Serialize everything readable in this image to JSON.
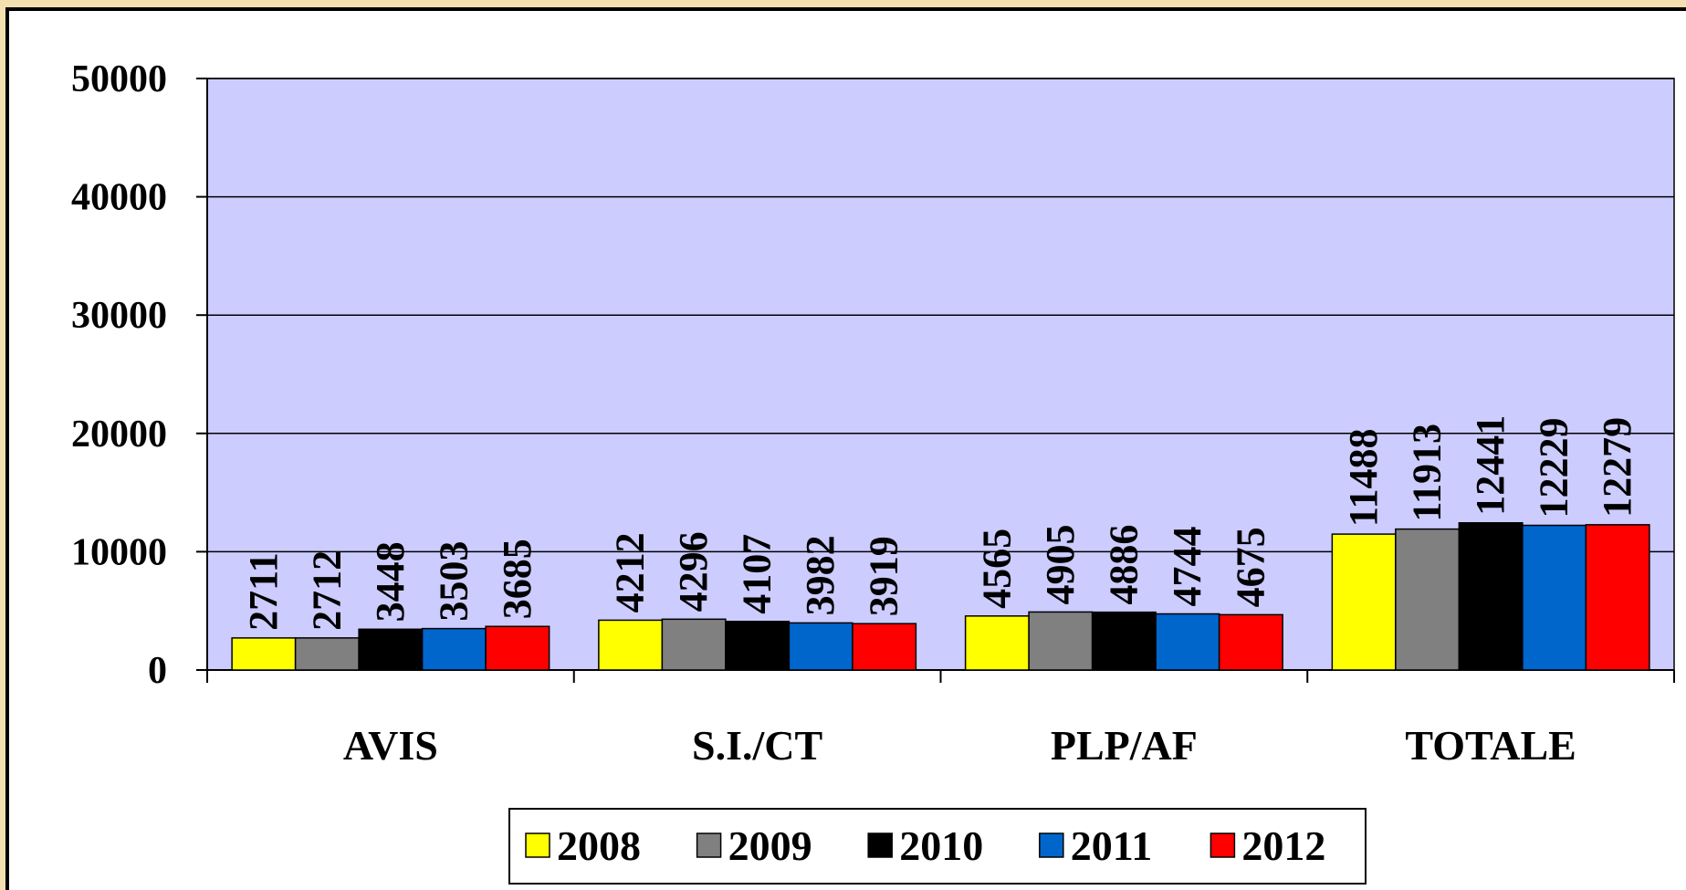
{
  "chart_data": {
    "type": "bar",
    "categories": [
      "AVIS",
      "S.I./CT",
      "PLP/AF",
      "TOTALE"
    ],
    "series": [
      {
        "name": "2008",
        "color": "#ffff00",
        "values": [
          2711,
          4212,
          4565,
          11488
        ]
      },
      {
        "name": "2009",
        "color": "#808080",
        "values": [
          2712,
          4296,
          4905,
          11913
        ]
      },
      {
        "name": "2010",
        "color": "#000000",
        "values": [
          3448,
          4107,
          4886,
          12441
        ]
      },
      {
        "name": "2011",
        "color": "#0066cc",
        "values": [
          3503,
          3982,
          4744,
          12229
        ]
      },
      {
        "name": "2012",
        "color": "#ff0000",
        "values": [
          3685,
          3919,
          4675,
          12279
        ]
      }
    ],
    "ylim": [
      0,
      50000
    ],
    "yticks": [
      0,
      10000,
      20000,
      30000,
      40000,
      50000
    ],
    "grid": true,
    "plot_background": "#ccccff",
    "legend": "bottom"
  }
}
